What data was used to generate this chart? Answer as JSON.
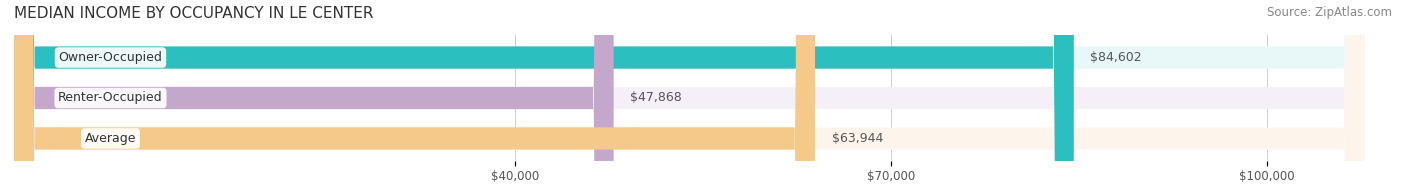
{
  "title": "MEDIAN INCOME BY OCCUPANCY IN LE CENTER",
  "source": "Source: ZipAtlas.com",
  "categories": [
    "Owner-Occupied",
    "Renter-Occupied",
    "Average"
  ],
  "values": [
    84602,
    47868,
    63944
  ],
  "value_labels": [
    "$84,602",
    "$47,868",
    "$63,944"
  ],
  "bar_colors": [
    "#2bbfbf",
    "#c3a8cc",
    "#f5c98a"
  ],
  "bar_bg_colors": [
    "#e8f8f8",
    "#f5f0f8",
    "#fdf5ec"
  ],
  "xlim": [
    0,
    110000
  ],
  "xticks": [
    40000,
    70000,
    100000
  ],
  "xticklabels": [
    "$40,000",
    "$70,000",
    "$100,000"
  ],
  "background_color": "#ffffff",
  "title_fontsize": 11,
  "source_fontsize": 8.5,
  "label_fontsize": 9,
  "value_fontsize": 9,
  "bar_height": 0.55,
  "bar_gap": 0.15
}
